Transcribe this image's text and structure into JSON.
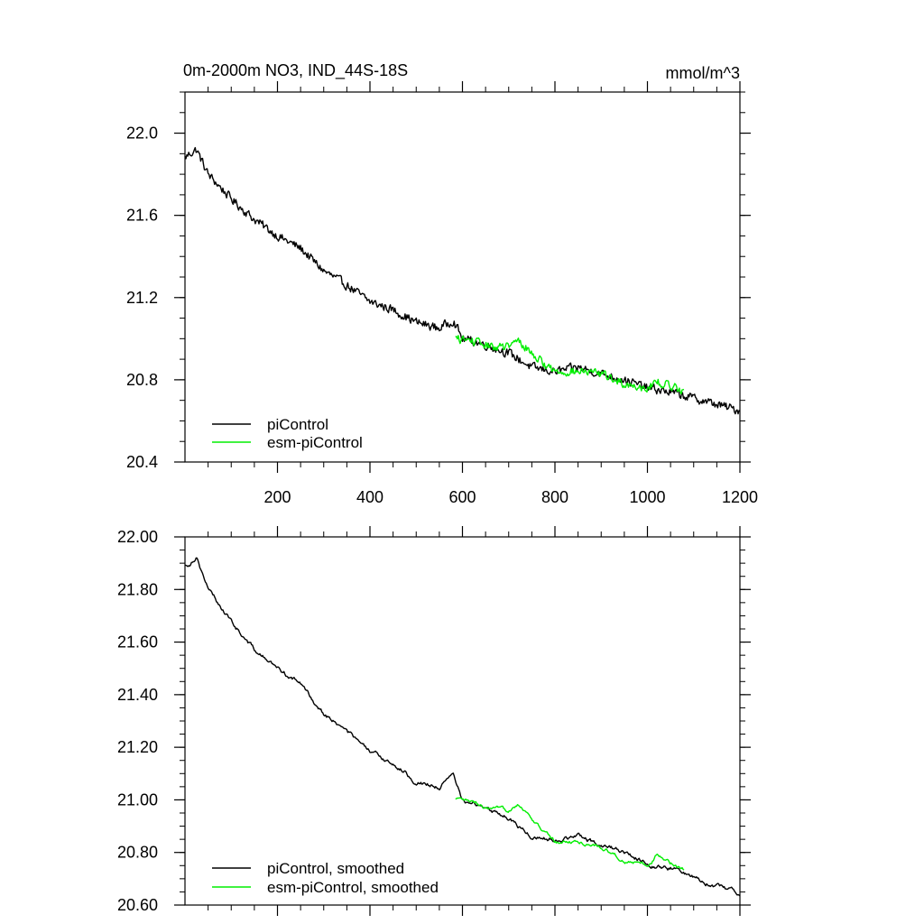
{
  "chart_data": [
    {
      "type": "line",
      "title": "0m-2000m NO3, IND_44S-18S",
      "units_label": "mmol/m^3",
      "xlabel": "",
      "ylabel": "",
      "xlim": [
        0,
        1200
      ],
      "ylim": [
        20.4,
        22.2
      ],
      "x_ticks": [
        200,
        400,
        600,
        800,
        1000,
        1200
      ],
      "x_tick_labels": [
        "200",
        "400",
        "600",
        "800",
        "1000",
        "1200"
      ],
      "y_ticks": [
        20.4,
        20.8,
        21.2,
        21.6,
        22.0
      ],
      "y_tick_labels": [
        "20.4",
        "20.8",
        "21.2",
        "21.6",
        "22.0"
      ],
      "grid": false,
      "legend_position": "bottom-left",
      "series": [
        {
          "name": "piControl",
          "color": "#000000",
          "x_range": [
            0,
            1200
          ],
          "anchor_x": [
            0,
            10,
            25,
            50,
            100,
            150,
            200,
            250,
            300,
            350,
            400,
            450,
            500,
            550,
            580,
            600,
            650,
            700,
            750,
            800,
            850,
            900,
            950,
            1000,
            1050,
            1100,
            1150,
            1200
          ],
          "anchor_y": [
            21.88,
            21.9,
            21.92,
            21.8,
            21.68,
            21.58,
            21.5,
            21.44,
            21.33,
            21.26,
            21.18,
            21.14,
            21.08,
            21.05,
            21.09,
            21.0,
            20.97,
            20.93,
            20.86,
            20.84,
            20.86,
            20.83,
            20.8,
            20.76,
            20.74,
            20.71,
            20.68,
            20.65
          ],
          "noise_amplitude": 0.03
        },
        {
          "name": "esm-piControl",
          "color": "#00ee00",
          "x_range": [
            585,
            1080
          ],
          "anchor_x": [
            585,
            620,
            660,
            700,
            720,
            740,
            770,
            800,
            850,
            900,
            950,
            1000,
            1020,
            1050,
            1080
          ],
          "anchor_y": [
            21.0,
            20.99,
            20.96,
            20.96,
            20.99,
            20.95,
            20.89,
            20.84,
            20.84,
            20.83,
            20.78,
            20.76,
            20.79,
            20.77,
            20.75
          ],
          "noise_amplitude": 0.028
        }
      ]
    },
    {
      "type": "line",
      "title": "",
      "xlabel": "",
      "ylabel": "",
      "xlim": [
        0,
        1200
      ],
      "ylim": [
        20.6,
        22.0
      ],
      "x_ticks": [
        200,
        400,
        600,
        800,
        1000,
        1200
      ],
      "y_ticks": [
        20.6,
        20.8,
        21.0,
        21.2,
        21.4,
        21.6,
        21.8,
        22.0
      ],
      "y_tick_labels": [
        "20.60",
        "20.80",
        "21.00",
        "21.20",
        "21.40",
        "21.60",
        "21.80",
        "22.00"
      ],
      "grid": false,
      "legend_position": "bottom-left",
      "series": [
        {
          "name": "piControl, smoothed",
          "color": "#000000",
          "x_range": [
            0,
            1200
          ],
          "anchor_x": [
            0,
            10,
            25,
            50,
            100,
            150,
            200,
            250,
            300,
            350,
            400,
            450,
            500,
            550,
            580,
            600,
            650,
            700,
            750,
            800,
            850,
            900,
            950,
            1000,
            1050,
            1100,
            1150,
            1200
          ],
          "anchor_y": [
            21.89,
            21.9,
            21.93,
            21.8,
            21.68,
            21.57,
            21.5,
            21.44,
            21.33,
            21.26,
            21.18,
            21.14,
            21.07,
            21.05,
            21.09,
            21.0,
            20.97,
            20.93,
            20.86,
            20.85,
            20.86,
            20.83,
            20.8,
            20.76,
            20.74,
            20.71,
            20.67,
            20.65
          ],
          "noise_amplitude": 0.014
        },
        {
          "name": "esm-piControl, smoothed",
          "color": "#00ee00",
          "x_range": [
            585,
            1080
          ],
          "anchor_x": [
            585,
            620,
            660,
            700,
            720,
            740,
            770,
            800,
            850,
            900,
            950,
            1000,
            1020,
            1050,
            1080
          ],
          "anchor_y": [
            21.0,
            20.99,
            20.96,
            20.96,
            20.99,
            20.95,
            20.89,
            20.84,
            20.84,
            20.82,
            20.77,
            20.75,
            20.79,
            20.76,
            20.74
          ],
          "noise_amplitude": 0.012
        }
      ]
    }
  ]
}
